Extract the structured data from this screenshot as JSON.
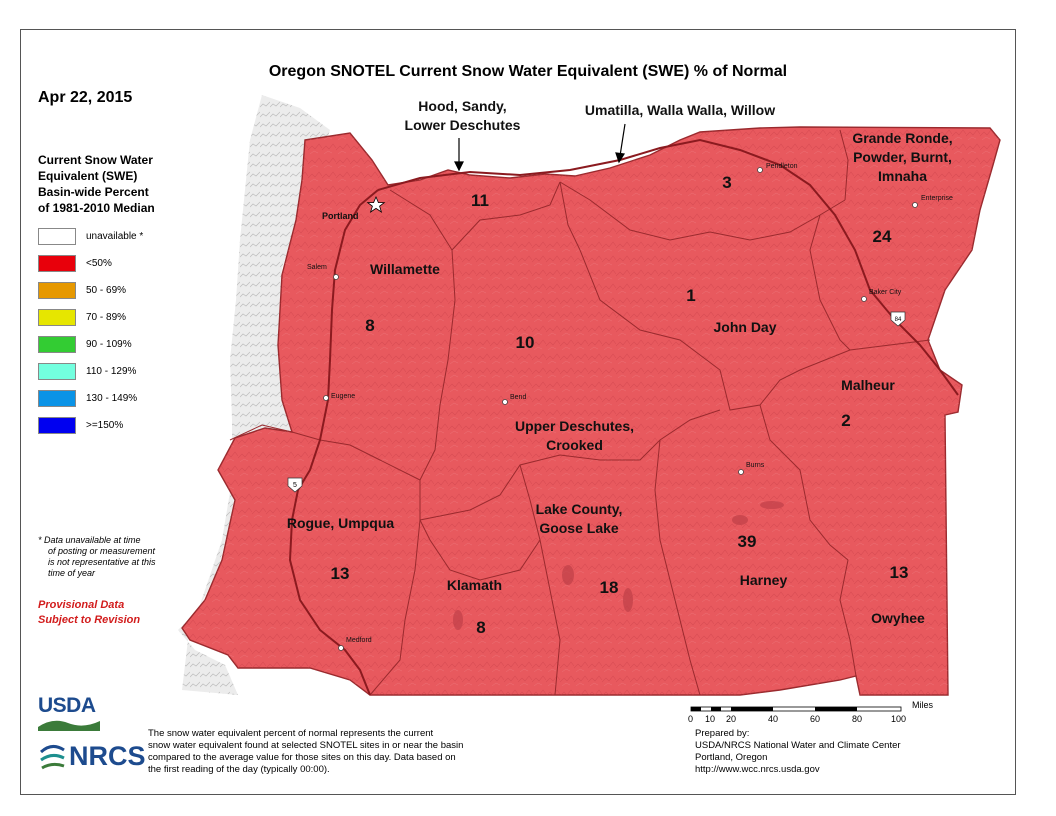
{
  "title": "Oregon SNOTEL Current Snow Water Equivalent (SWE) % of Normal",
  "date": "Apr 22, 2015",
  "legend": {
    "title_lines": [
      "Current Snow Water",
      "Equivalent (SWE)",
      "Basin-wide Percent",
      "of 1981-2010 Median"
    ],
    "items": [
      {
        "label": "unavailable *",
        "color": "#ffffff"
      },
      {
        "label": "<50%",
        "color": "#e8000b"
      },
      {
        "label": "50 - 69%",
        "color": "#e69800"
      },
      {
        "label": "70 - 89%",
        "color": "#e6e600"
      },
      {
        "label": "90 - 109%",
        "color": "#33cc33"
      },
      {
        "label": "110 - 129%",
        "color": "#73ffdf"
      },
      {
        "label": "130 - 149%",
        "color": "#0a93e6"
      },
      {
        "label": ">=150%",
        "color": "#0000f0"
      }
    ]
  },
  "note_lines": [
    "*  Data unavailable at time",
    "of posting or measurement",
    "is not representative at this",
    "time of year"
  ],
  "provisional_lines": [
    "Provisional Data",
    "Subject to Revision"
  ],
  "description_lines": [
    "The snow water equivalent percent of normal represents the current",
    "snow water equivalent found at selected SNOTEL sites in or near the basin",
    "compared to the average value for those sites on this day. Data based on",
    "the first reading of the day (typically 00:00)."
  ],
  "prepared_lines": [
    "Prepared by:",
    "USDA/NRCS National Water and Climate Center",
    "Portland, Oregon",
    "http://www.wcc.nrcs.usda.gov"
  ],
  "logos": {
    "usda": "USDA",
    "nrcs": "NRCS"
  },
  "scale": {
    "unit": "Miles",
    "ticks": [
      "0",
      "10",
      "20",
      "40",
      "60",
      "80",
      "100"
    ]
  },
  "basins": [
    {
      "name": "Hood, Sandy,\nLower Deschutes",
      "value": "11"
    },
    {
      "name": "Umatilla, Walla Walla, Willow",
      "value": "3"
    },
    {
      "name": "Grande Ronde,\nPowder, Burnt,\nImnaha",
      "value": "24"
    },
    {
      "name": "Willamette",
      "value": "8"
    },
    {
      "name": "John Day",
      "value": "1"
    },
    {
      "name": "Upper Deschutes,\nCrooked",
      "value": "10"
    },
    {
      "name": "Malheur",
      "value": "2"
    },
    {
      "name": "Rogue, Umpqua",
      "value": "13"
    },
    {
      "name": "Lake County,\nGoose Lake",
      "value": "18"
    },
    {
      "name": "Klamath",
      "value": "8"
    },
    {
      "name": "Harney",
      "value": "39"
    },
    {
      "name": "Owyhee",
      "value": "13"
    }
  ],
  "cities": [
    "Portland",
    "Salem",
    "Eugene",
    "Bend",
    "Medford",
    "Pendleton",
    "Enterprise",
    "Baker City",
    "Burns"
  ],
  "highway_shields": [
    "5",
    "84"
  ],
  "colors": {
    "map_fill": "#e8595e",
    "boundary": "#9a2a2e",
    "highway": "#8b1a1f",
    "coast": "#e8e8e8"
  }
}
